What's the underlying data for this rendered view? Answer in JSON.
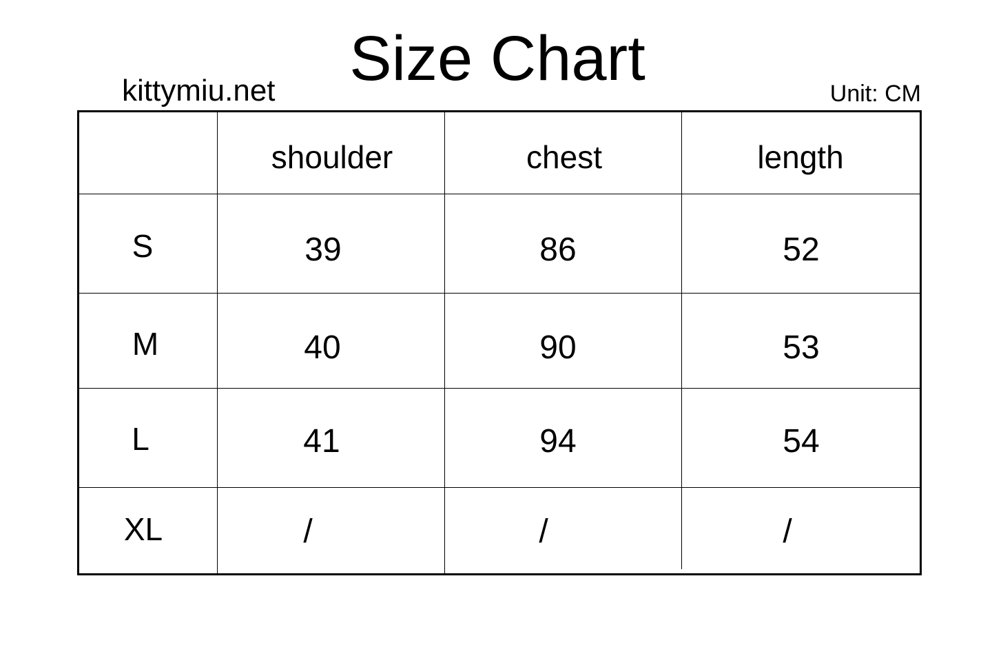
{
  "title": "Size Chart",
  "site": "kittymiu.net",
  "unit": "Unit: CM",
  "chart_data": {
    "type": "table",
    "columns": [
      "",
      "shoulder",
      "chest",
      "length"
    ],
    "rows": [
      {
        "size": "S",
        "values": [
          "39",
          "86",
          "52"
        ]
      },
      {
        "size": "M",
        "values": [
          "40",
          "90",
          "53"
        ]
      },
      {
        "size": "L",
        "values": [
          "41",
          "94",
          "54"
        ]
      },
      {
        "size": "XL",
        "values": [
          "/",
          "/",
          "/"
        ]
      }
    ]
  }
}
